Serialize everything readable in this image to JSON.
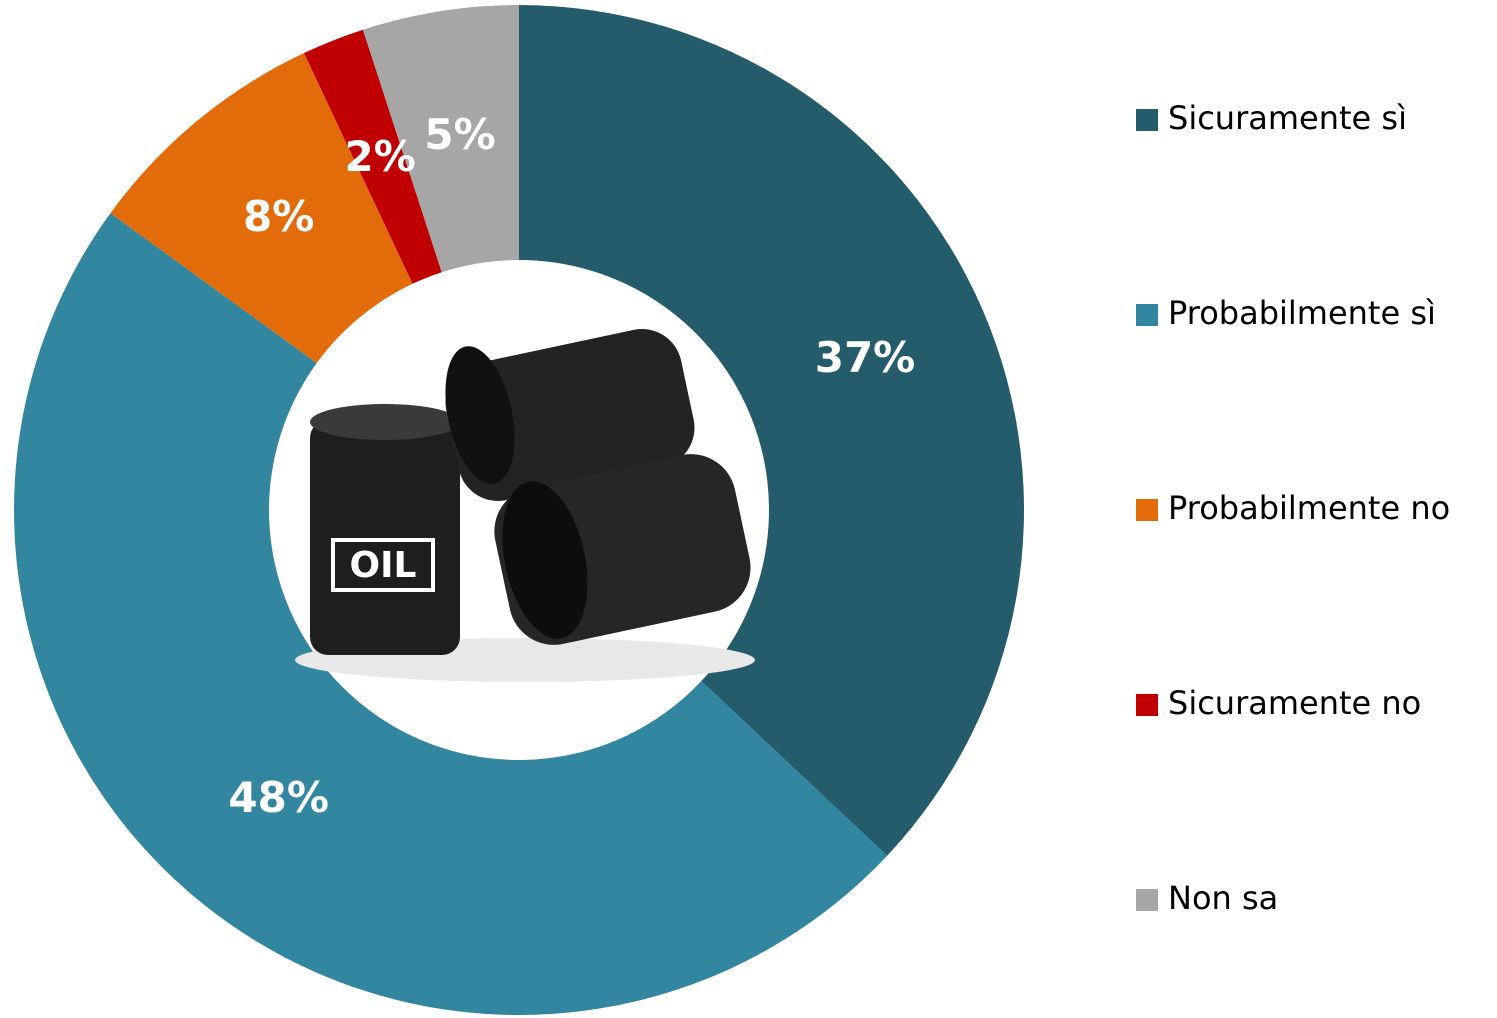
{
  "chart_data": {
    "type": "donut",
    "categories": [
      "Sicuramente sì",
      "Probabilmente sì",
      "Probabilmente no",
      "Sicuramente no",
      "Non sa"
    ],
    "values": [
      37,
      48,
      8,
      2,
      5
    ],
    "value_labels": [
      "37%",
      "48%",
      "8%",
      "2%",
      "5%"
    ],
    "colors": [
      "#245c6c",
      "#3386a0",
      "#e36c0a",
      "#c00000",
      "#a6a6a6"
    ],
    "legend": "right",
    "center_label": "OIL"
  }
}
